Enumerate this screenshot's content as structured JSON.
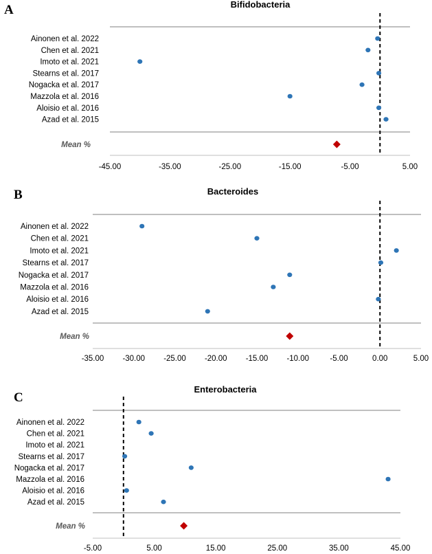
{
  "chart_data": [
    {
      "type": "scatter",
      "panel_label": "A",
      "title": "Bifidobacteria",
      "studies": [
        "Ainonen et al. 2022",
        "Chen et al. 2021",
        "Imoto et al. 2021",
        "Stearns et al. 2017",
        "Nogacka et al. 2017",
        "Mazzola et al. 2016",
        "Aloisio et al. 2016",
        "Azad et al. 2015"
      ],
      "values": [
        -0.4,
        -2,
        -40,
        -0.2,
        -3,
        -15,
        -0.2,
        1
      ],
      "mean_label": "Mean %",
      "mean_value": -7.2,
      "xlim": [
        -45,
        5
      ],
      "xticks": [
        -45,
        -35,
        -25,
        -15,
        -5,
        5
      ],
      "xtick_labels": [
        "-45.00",
        "-35.00",
        "-25.00",
        "-15.00",
        "-5.00",
        "5.00"
      ],
      "reference_line": 0,
      "point_color": "#2e75b6",
      "mean_color": "#c00000"
    },
    {
      "type": "scatter",
      "panel_label": "B",
      "title": "Bacteroides",
      "studies": [
        "Ainonen et al. 2022",
        "Chen et al. 2021",
        "Imoto et al. 2021",
        "Stearns et al. 2017",
        "Nogacka et al. 2017",
        "Mazzola et al. 2016",
        "Aloisio et al. 2016",
        "Azad et al. 2015"
      ],
      "values": [
        -29,
        -15,
        2,
        0.1,
        -11,
        -13,
        -0.2,
        -21
      ],
      "mean_label": "Mean %",
      "mean_value": -11,
      "xlim": [
        -35,
        5
      ],
      "xticks": [
        -35,
        -30,
        -25,
        -20,
        -15,
        -10,
        -5,
        0,
        5
      ],
      "xtick_labels": [
        "-35.00",
        "-30.00",
        "-25.00",
        "-20.00",
        "-15.00",
        "-10.00",
        "-5.00",
        "0.00",
        "5.00"
      ],
      "reference_line": 0,
      "point_color": "#2e75b6",
      "mean_color": "#c00000"
    },
    {
      "type": "scatter",
      "panel_label": "C",
      "title": "Enterobacteria",
      "studies": [
        "Ainonen et al. 2022",
        "Chen et al. 2021",
        "Imoto et al. 2021",
        "Stearns et al. 2017",
        "Nogacka et al. 2017",
        "Mazzola et al. 2016",
        "Aloisio et al. 2016",
        "Azad et al. 2015"
      ],
      "values": [
        2.5,
        4.5,
        null,
        0.2,
        11,
        43,
        0.5,
        6.5
      ],
      "mean_label": "Mean %",
      "mean_value": 9.8,
      "xlim": [
        -5,
        45
      ],
      "xticks": [
        -5,
        5,
        15,
        25,
        35,
        45
      ],
      "xtick_labels": [
        "-5.00",
        "5.00",
        "15.00",
        "25.00",
        "35.00",
        "45.00"
      ],
      "reference_line": 0,
      "point_color": "#2e75b6",
      "mean_color": "#c00000"
    }
  ]
}
